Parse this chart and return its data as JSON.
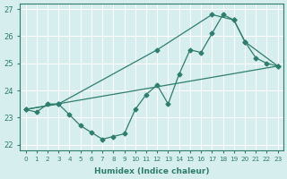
{
  "xlabel": "Humidex (Indice chaleur)",
  "line1_x": [
    0,
    1,
    2,
    3,
    4,
    5,
    6,
    7,
    8,
    9,
    10,
    11,
    12,
    13,
    14,
    15,
    16,
    17,
    18,
    19,
    20,
    21,
    22,
    23
  ],
  "line1_y": [
    23.3,
    23.2,
    23.5,
    23.5,
    23.1,
    22.7,
    22.45,
    22.2,
    22.3,
    22.4,
    23.3,
    23.85,
    24.2,
    23.5,
    24.6,
    25.5,
    25.4,
    26.1,
    26.8,
    26.6,
    25.8,
    25.2,
    25.0,
    24.9
  ],
  "line2_x": [
    0,
    23
  ],
  "line2_y": [
    23.3,
    24.9
  ],
  "line3_x": [
    0,
    3,
    12,
    17,
    19,
    20,
    23
  ],
  "line3_y": [
    23.3,
    23.5,
    25.5,
    26.8,
    26.6,
    25.8,
    24.9
  ],
  "xlim": [
    -0.5,
    23.5
  ],
  "ylim": [
    21.8,
    27.2
  ],
  "yticks": [
    22,
    23,
    24,
    25,
    26,
    27
  ],
  "xticks": [
    0,
    1,
    2,
    3,
    4,
    5,
    6,
    7,
    8,
    9,
    10,
    11,
    12,
    13,
    14,
    15,
    16,
    17,
    18,
    19,
    20,
    21,
    22,
    23
  ],
  "line_color": "#2e7d6e",
  "bg_color": "#d6eeee",
  "grid_color": "#ffffff",
  "marker": "D",
  "markersize": 2.5
}
